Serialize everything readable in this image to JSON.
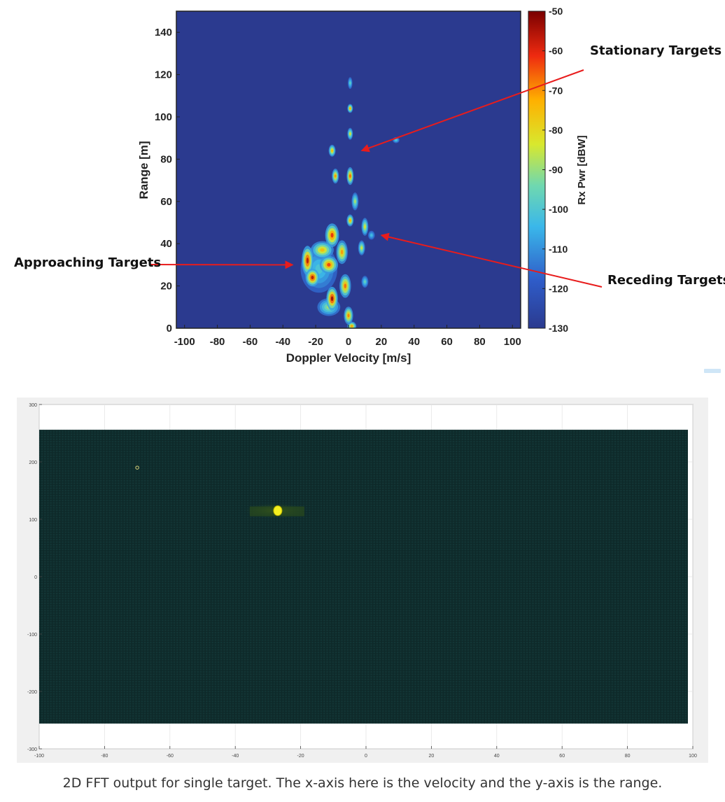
{
  "chart_data": [
    {
      "type": "heatmap",
      "xlabel": "Doppler Velocity [m/s]",
      "ylabel": "Range [m]",
      "xlim": [
        -105,
        105
      ],
      "ylim": [
        0,
        150
      ],
      "x_ticks": [
        -100,
        -80,
        -60,
        -40,
        -20,
        0,
        20,
        40,
        60,
        80,
        100
      ],
      "y_ticks": [
        0,
        20,
        40,
        60,
        80,
        100,
        120,
        140
      ],
      "colorbar": {
        "label": "Rx Pwr [dBW]",
        "range": [
          -130,
          -50
        ],
        "ticks": [
          -50,
          -60,
          -70,
          -80,
          -90,
          -100,
          -110,
          -120,
          -130
        ],
        "colormap": "jet"
      },
      "background_color": "#2b3a8f",
      "grid": false,
      "annotations": [
        {
          "text": "Stationary Targets",
          "point_x": 8,
          "point_y": 84
        },
        {
          "text": "Approaching Targets",
          "point_x": -34,
          "point_y": 30
        },
        {
          "text": "Receding Targets",
          "point_x": 20,
          "point_y": 44
        }
      ],
      "clusters": [
        {
          "x": -10,
          "y": 14,
          "sx": 2.5,
          "sy": 4,
          "power": -52
        },
        {
          "x": -25,
          "y": 32,
          "sx": 2.5,
          "sy": 5,
          "power": -55
        },
        {
          "x": -22,
          "y": 24,
          "sx": 3,
          "sy": 3,
          "power": -55
        },
        {
          "x": -12,
          "y": 30,
          "sx": 4,
          "sy": 3,
          "power": -62
        },
        {
          "x": -10,
          "y": 44,
          "sx": 3,
          "sy": 4,
          "power": -60
        },
        {
          "x": -16,
          "y": 37,
          "sx": 5,
          "sy": 3,
          "power": -74
        },
        {
          "x": -4,
          "y": 36,
          "sx": 2.5,
          "sy": 4,
          "power": -70
        },
        {
          "x": -2,
          "y": 20,
          "sx": 2.5,
          "sy": 4,
          "power": -66
        },
        {
          "x": 0,
          "y": 6,
          "sx": 2,
          "sy": 3,
          "power": -68
        },
        {
          "x": 2,
          "y": 1,
          "sx": 2,
          "sy": 1.5,
          "power": -70
        },
        {
          "x": 1,
          "y": 72,
          "sx": 1.5,
          "sy": 3,
          "power": -66
        },
        {
          "x": -8,
          "y": 72,
          "sx": 1.5,
          "sy": 2.5,
          "power": -70
        },
        {
          "x": -10,
          "y": 84,
          "sx": 1.5,
          "sy": 2,
          "power": -74
        },
        {
          "x": 1,
          "y": 104,
          "sx": 1.2,
          "sy": 1.5,
          "power": -72
        },
        {
          "x": 1,
          "y": 92,
          "sx": 1.2,
          "sy": 2,
          "power": -82
        },
        {
          "x": 1,
          "y": 51,
          "sx": 1.5,
          "sy": 2,
          "power": -72
        },
        {
          "x": 10,
          "y": 48,
          "sx": 1.5,
          "sy": 3,
          "power": -82
        },
        {
          "x": 8,
          "y": 38,
          "sx": 1.5,
          "sy": 2.5,
          "power": -84
        },
        {
          "x": 4,
          "y": 60,
          "sx": 1.5,
          "sy": 3,
          "power": -88
        },
        {
          "x": 1,
          "y": 116,
          "sx": 1,
          "sy": 2,
          "power": -98
        },
        {
          "x": 29,
          "y": 89,
          "sx": 1.5,
          "sy": 1,
          "power": -100
        },
        {
          "x": -12,
          "y": 10,
          "sx": 5,
          "sy": 3,
          "power": -88
        },
        {
          "x": -18,
          "y": 28,
          "sx": 8,
          "sy": 8,
          "power": -100
        },
        {
          "x": 10,
          "y": 22,
          "sx": 1.5,
          "sy": 2,
          "power": -96
        },
        {
          "x": 14,
          "y": 44,
          "sx": 1.5,
          "sy": 1.5,
          "power": -102
        }
      ]
    },
    {
      "type": "heatmap",
      "xlim": [
        -100,
        100
      ],
      "ylim": [
        -300,
        300
      ],
      "x_ticks": [
        "-100",
        "-80",
        "-60",
        "-40",
        "-20",
        "0",
        "20",
        "40",
        "60",
        "80",
        "100"
      ],
      "y_ticks": [
        "300",
        "200",
        "100",
        "0",
        "-100",
        "-200",
        "-300"
      ],
      "data_extent": {
        "x": [
          -100,
          100
        ],
        "y": [
          -256,
          256
        ]
      },
      "background_color": "#0f2a2a",
      "grid": true,
      "peaks": [
        {
          "x": -27,
          "y": 115,
          "power": 1.0
        },
        {
          "x": -70,
          "y": 190,
          "power": 0.3
        }
      ]
    }
  ],
  "caption": "2D FFT output for single target. The x-axis here is the velocity and the y-axis is the range."
}
